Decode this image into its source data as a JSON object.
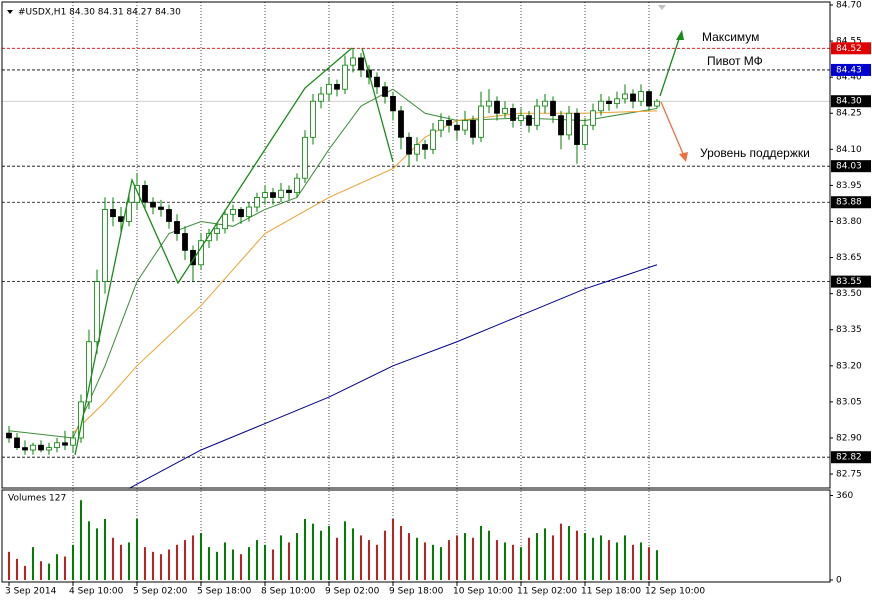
{
  "chart_data": {
    "type": "candlestick",
    "header": "#USDX,H1  84.30 84.31 84.27 84.30",
    "annotations": [
      "Максимум",
      "Пивот МФ",
      "Уровень поддержки"
    ],
    "up_color": "#008000",
    "down_color": "#000000",
    "xlim": [
      -0.875,
      102.625
    ],
    "xticks": [
      {
        "value": 0,
        "label": "3 Sep 2014"
      },
      {
        "value": 8,
        "label": "4 Sep 10:00"
      },
      {
        "value": 16,
        "label": "5 Sep 02:00"
      },
      {
        "value": 24,
        "label": "5 Sep 18:00"
      },
      {
        "value": 32,
        "label": "8 Sep 10:00"
      },
      {
        "value": 40,
        "label": "9 Sep 02:00"
      },
      {
        "value": 48,
        "label": "9 Sep 18:00"
      },
      {
        "value": 56,
        "label": "10 Sep 10:00"
      },
      {
        "value": 64,
        "label": "11 Sep 02:00"
      },
      {
        "value": 72,
        "label": "11 Sep 18:00"
      },
      {
        "value": 80,
        "label": "12 Sep 10:00"
      }
    ],
    "ylim": [
      82.692,
      84.7125
    ],
    "yticks": [
      {
        "value": 84.7,
        "label": "84.70"
      },
      {
        "value": 84.55,
        "label": "84.55"
      },
      {
        "value": 84.4,
        "label": "84.40"
      },
      {
        "value": 84.25,
        "label": "84.25"
      },
      {
        "value": 84.1,
        "label": "84.10"
      },
      {
        "value": 83.95,
        "label": "83.95"
      },
      {
        "value": 83.8,
        "label": "83.80"
      },
      {
        "value": 83.65,
        "label": "83.65"
      },
      {
        "value": 83.5,
        "label": "83.50"
      },
      {
        "value": 83.35,
        "label": "83.35"
      },
      {
        "value": 83.2,
        "label": "83.20"
      },
      {
        "value": 83.05,
        "label": "83.05"
      },
      {
        "value": 82.9,
        "label": "82.90"
      },
      {
        "value": 82.75,
        "label": "82.75"
      }
    ],
    "levels": [
      {
        "value": 84.52,
        "color": "#e00000",
        "line_color": "#e00000"
      },
      {
        "value": 84.43,
        "color": "#0000d0",
        "line_color": "#000000"
      },
      {
        "value": 84.3,
        "label": "84.30",
        "color": "#000000",
        "line_color": "#c0c0c0"
      },
      {
        "value": 84.03,
        "color": "#000000",
        "line_color": "#000000"
      },
      {
        "value": 83.88,
        "color": "#000000",
        "line_color": "#000000"
      },
      {
        "value": 83.55,
        "color": "#000000",
        "line_color": "#000000"
      },
      {
        "value": 82.82,
        "color": "#000000",
        "line_color": "#000000"
      }
    ],
    "x": [
      0,
      1,
      2,
      3,
      4,
      5,
      6,
      7,
      8,
      9,
      10,
      11,
      12,
      13,
      14,
      15,
      16,
      17,
      18,
      19,
      20,
      21,
      22,
      23,
      24,
      25,
      26,
      27,
      28,
      29,
      30,
      31,
      32,
      33,
      34,
      35,
      36,
      37,
      38,
      39,
      40,
      41,
      42,
      43,
      44,
      45,
      46,
      47,
      48,
      49,
      50,
      51,
      52,
      53,
      54,
      55,
      56,
      57,
      58,
      59,
      60,
      61,
      62,
      63,
      64,
      65,
      66,
      67,
      68,
      69,
      70,
      71,
      72,
      73,
      74,
      75,
      76,
      77,
      78,
      79,
      80,
      81
    ],
    "ohlc": [
      [
        82.92,
        82.95,
        82.88,
        82.9
      ],
      [
        82.9,
        82.92,
        82.85,
        82.86
      ],
      [
        82.86,
        82.89,
        82.83,
        82.85
      ],
      [
        82.85,
        82.88,
        82.83,
        82.87
      ],
      [
        82.87,
        82.89,
        82.84,
        82.85
      ],
      [
        82.85,
        82.88,
        82.83,
        82.86
      ],
      [
        82.86,
        82.9,
        82.84,
        82.88
      ],
      [
        82.88,
        82.93,
        82.85,
        82.87
      ],
      [
        82.87,
        82.93,
        82.84,
        82.9
      ],
      [
        82.9,
        83.08,
        82.88,
        83.05
      ],
      [
        83.05,
        83.35,
        83.02,
        83.3
      ],
      [
        83.3,
        83.6,
        83.25,
        83.55
      ],
      [
        83.55,
        83.9,
        83.5,
        83.85
      ],
      [
        83.85,
        83.9,
        83.78,
        83.82
      ],
      [
        83.82,
        83.86,
        83.75,
        83.8
      ],
      [
        83.8,
        83.92,
        83.78,
        83.88
      ],
      [
        83.88,
        84.0,
        83.85,
        83.95
      ],
      [
        83.95,
        83.97,
        83.85,
        83.88
      ],
      [
        83.88,
        83.9,
        83.83,
        83.86
      ],
      [
        83.86,
        83.89,
        83.82,
        83.85
      ],
      [
        83.85,
        83.87,
        83.77,
        83.8
      ],
      [
        83.8,
        83.83,
        83.72,
        83.75
      ],
      [
        83.75,
        83.78,
        83.64,
        83.68
      ],
      [
        83.68,
        83.7,
        83.55,
        83.62
      ],
      [
        83.62,
        83.75,
        83.6,
        83.72
      ],
      [
        83.72,
        83.77,
        83.69,
        83.75
      ],
      [
        83.75,
        83.79,
        83.72,
        83.77
      ],
      [
        83.77,
        83.85,
        83.75,
        83.83
      ],
      [
        83.83,
        83.87,
        83.8,
        83.85
      ],
      [
        83.85,
        83.86,
        83.79,
        83.82
      ],
      [
        83.82,
        83.88,
        83.8,
        83.86
      ],
      [
        83.86,
        83.92,
        83.84,
        83.9
      ],
      [
        83.9,
        83.95,
        83.87,
        83.92
      ],
      [
        83.92,
        83.94,
        83.87,
        83.9
      ],
      [
        83.9,
        83.96,
        83.88,
        83.93
      ],
      [
        83.93,
        83.95,
        83.89,
        83.92
      ],
      [
        83.92,
        84.0,
        83.9,
        83.98
      ],
      [
        83.98,
        84.18,
        83.96,
        84.15
      ],
      [
        84.15,
        84.33,
        84.12,
        84.3
      ],
      [
        84.3,
        84.36,
        84.27,
        84.33
      ],
      [
        84.33,
        84.4,
        84.3,
        84.37
      ],
      [
        84.37,
        84.39,
        84.32,
        84.35
      ],
      [
        84.35,
        84.49,
        84.33,
        84.45
      ],
      [
        84.45,
        84.52,
        84.42,
        84.48
      ],
      [
        84.48,
        84.5,
        84.4,
        84.43
      ],
      [
        84.43,
        84.45,
        84.37,
        84.4
      ],
      [
        84.4,
        84.42,
        84.33,
        84.36
      ],
      [
        84.36,
        84.38,
        84.29,
        84.32
      ],
      [
        84.32,
        84.34,
        84.22,
        84.26
      ],
      [
        84.26,
        84.28,
        84.1,
        84.15
      ],
      [
        84.15,
        84.17,
        84.03,
        84.08
      ],
      [
        84.08,
        84.15,
        84.05,
        84.12
      ],
      [
        84.12,
        84.14,
        84.06,
        84.1
      ],
      [
        84.1,
        84.21,
        84.08,
        84.18
      ],
      [
        84.18,
        84.25,
        84.15,
        84.22
      ],
      [
        84.22,
        84.24,
        84.17,
        84.2
      ],
      [
        84.2,
        84.22,
        84.14,
        84.18
      ],
      [
        84.18,
        84.26,
        84.16,
        84.22
      ],
      [
        84.22,
        84.24,
        84.12,
        84.15
      ],
      [
        84.15,
        84.34,
        84.13,
        84.28
      ],
      [
        84.28,
        84.35,
        84.25,
        84.3
      ],
      [
        84.3,
        84.32,
        84.22,
        84.25
      ],
      [
        84.25,
        84.3,
        84.23,
        84.27
      ],
      [
        84.27,
        84.29,
        84.19,
        84.22
      ],
      [
        84.22,
        84.27,
        84.2,
        84.24
      ],
      [
        84.24,
        84.26,
        84.17,
        84.2
      ],
      [
        84.2,
        84.31,
        84.18,
        84.28
      ],
      [
        84.28,
        84.33,
        84.25,
        84.3
      ],
      [
        84.3,
        84.32,
        84.21,
        84.24
      ],
      [
        84.24,
        84.26,
        84.1,
        84.16
      ],
      [
        84.16,
        84.28,
        84.14,
        84.25
      ],
      [
        84.25,
        84.27,
        84.04,
        84.12
      ],
      [
        84.12,
        84.23,
        84.1,
        84.2
      ],
      [
        84.2,
        84.29,
        84.18,
        84.26
      ],
      [
        84.26,
        84.33,
        84.24,
        84.3
      ],
      [
        84.3,
        84.32,
        84.26,
        84.29
      ],
      [
        84.29,
        84.34,
        84.27,
        84.31
      ],
      [
        84.31,
        84.37,
        84.29,
        84.33
      ],
      [
        84.33,
        84.35,
        84.27,
        84.3
      ],
      [
        84.3,
        84.37,
        84.28,
        84.34
      ],
      [
        84.34,
        84.35,
        84.26,
        84.28
      ],
      [
        84.28,
        84.31,
        84.27,
        84.3
      ]
    ],
    "moving_averages": [
      {
        "color": "#3c8c3c",
        "x": [
          0,
          8,
          12,
          16,
          20,
          24,
          28,
          32,
          36,
          40,
          44,
          48,
          52,
          56,
          64,
          72,
          81
        ],
        "values": [
          82.93,
          82.9,
          83.2,
          83.55,
          83.75,
          83.8,
          83.78,
          83.85,
          83.9,
          84.1,
          84.28,
          84.35,
          84.25,
          84.22,
          84.23,
          84.22,
          84.27
        ]
      },
      {
        "color": "#f0a030",
        "x": [
          8,
          12,
          16,
          24,
          32,
          40,
          48,
          52,
          56,
          64,
          72,
          81
        ],
        "values": [
          82.92,
          83.05,
          83.2,
          83.45,
          83.75,
          83.9,
          84.02,
          84.15,
          84.22,
          84.25,
          84.25,
          84.26
        ]
      },
      {
        "color": "#000090",
        "x": [
          15,
          24,
          32,
          40,
          48,
          56,
          64,
          72,
          81
        ],
        "values": [
          82.69,
          82.85,
          82.96,
          83.07,
          83.2,
          83.3,
          83.41,
          83.52,
          83.62
        ]
      }
    ],
    "volume_title": "Volumes 127",
    "volume_ylim": [
      0,
      375
    ],
    "volume_yticks": [
      0,
      360
    ],
    "volumes": [
      120,
      90,
      60,
      140,
      80,
      70,
      110,
      100,
      150,
      340,
      250,
      220,
      260,
      180,
      150,
      160,
      260,
      140,
      120,
      110,
      130,
      150,
      170,
      190,
      200,
      140,
      120,
      160,
      130,
      110,
      140,
      170,
      150,
      130,
      190,
      160,
      200,
      260,
      240,
      210,
      230,
      180,
      250,
      220,
      190,
      170,
      150,
      210,
      260,
      230,
      200,
      180,
      160,
      150,
      140,
      170,
      190,
      200,
      180,
      230,
      210,
      170,
      160,
      150,
      140,
      180,
      200,
      220,
      190,
      240,
      230,
      210,
      200,
      180,
      190,
      170,
      160,
      190,
      150,
      160,
      140,
      127
    ]
  }
}
